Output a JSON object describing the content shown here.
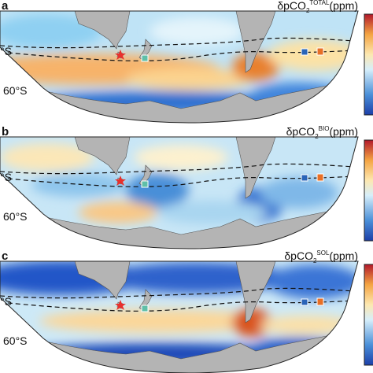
{
  "panels": [
    {
      "label": "a",
      "title": {
        "main": "δpCO",
        "sub": "2",
        "sup": "TOTAL",
        "unit": "(ppm)"
      },
      "lat_labels": [
        "°S",
        "60°S"
      ]
    },
    {
      "label": "b",
      "title": {
        "main": "δpCO",
        "sub": "2",
        "sup": "BIO",
        "unit": "(ppm)"
      },
      "lat_labels": [
        "°S",
        "60°S"
      ]
    },
    {
      "label": "c",
      "title": {
        "main": "δpCO",
        "sub": "2",
        "sup": "SOL",
        "unit": "(ppm)"
      },
      "lat_labels": [
        "°S",
        "60°S"
      ]
    }
  ]
}
